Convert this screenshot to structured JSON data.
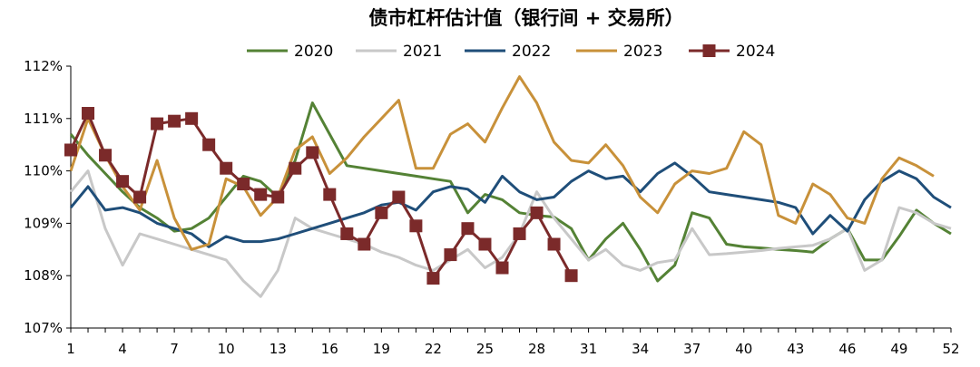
{
  "chart_data": {
    "type": "line",
    "title": "债市杠杆估计值（银行间 + 交易所）",
    "xlabel": "",
    "ylabel": "",
    "xlim": [
      1,
      52
    ],
    "ylim": [
      107,
      112
    ],
    "x_ticks": [
      "1",
      "4",
      "7",
      "10",
      "13",
      "16",
      "19",
      "22",
      "25",
      "28",
      "31",
      "34",
      "37",
      "40",
      "43",
      "46",
      "49",
      "52"
    ],
    "y_ticks": [
      "107%",
      "108%",
      "109%",
      "110%",
      "111%",
      "112%"
    ],
    "grid": false,
    "legend_position": "top",
    "series": [
      {
        "name": "2020",
        "color": "#548235",
        "marker": "none",
        "values": [
          110.7,
          110.3,
          109.95,
          109.6,
          109.3,
          109.1,
          108.85,
          108.9,
          109.1,
          109.5,
          109.9,
          109.8,
          109.5,
          110.2,
          111.3,
          110.7,
          110.1,
          110.05,
          110.0,
          109.95,
          109.9,
          109.85,
          109.8,
          109.2,
          109.55,
          109.45,
          109.2,
          109.15,
          109.12,
          108.9,
          108.3,
          108.7,
          109.0,
          108.5,
          107.9,
          108.2,
          109.2,
          109.1,
          108.6,
          108.55,
          108.53,
          108.5,
          108.48,
          108.45,
          108.7,
          108.9,
          108.3,
          108.3,
          108.75,
          109.25,
          109.0,
          108.8
        ]
      },
      {
        "name": "2021",
        "color": "#c8c8c8",
        "marker": "none",
        "values": [
          109.6,
          110.0,
          108.9,
          108.2,
          108.8,
          108.7,
          108.6,
          108.5,
          108.4,
          108.3,
          107.9,
          107.6,
          108.1,
          109.1,
          108.9,
          108.8,
          108.7,
          108.6,
          108.45,
          108.35,
          108.2,
          108.1,
          108.3,
          108.5,
          108.15,
          108.35,
          108.8,
          109.6,
          109.1,
          108.7,
          108.3,
          108.5,
          108.2,
          108.1,
          108.25,
          108.3,
          108.9,
          108.4,
          108.42,
          108.45,
          108.48,
          108.52,
          108.55,
          108.58,
          108.7,
          108.9,
          108.1,
          108.3,
          109.3,
          109.2,
          109.0,
          108.9
        ]
      },
      {
        "name": "2022",
        "color": "#1f4e79",
        "marker": "none",
        "values": [
          109.3,
          109.7,
          109.25,
          109.3,
          109.2,
          109.0,
          108.9,
          108.8,
          108.55,
          108.75,
          108.65,
          108.65,
          108.7,
          108.8,
          108.9,
          109.0,
          109.1,
          109.2,
          109.35,
          109.4,
          109.25,
          109.6,
          109.7,
          109.65,
          109.4,
          109.9,
          109.6,
          109.45,
          109.5,
          109.8,
          110.0,
          109.85,
          109.9,
          109.6,
          109.95,
          110.15,
          109.9,
          109.6,
          109.55,
          109.5,
          109.45,
          109.4,
          109.3,
          108.8,
          109.15,
          108.85,
          109.45,
          109.8,
          110.0,
          109.85,
          109.5,
          109.3
        ]
      },
      {
        "name": "2023",
        "color": "#c8913a",
        "marker": "none",
        "values": [
          110.0,
          111.0,
          110.3,
          109.7,
          109.25,
          110.2,
          109.1,
          108.5,
          108.6,
          109.85,
          109.7,
          109.15,
          109.5,
          110.4,
          110.65,
          109.95,
          110.25,
          110.65,
          111.0,
          111.35,
          110.05,
          110.05,
          110.7,
          110.9,
          110.55,
          111.2,
          111.8,
          111.3,
          110.55,
          110.2,
          110.15,
          110.5,
          110.1,
          109.5,
          109.2,
          109.75,
          110.0,
          109.95,
          110.05,
          110.75,
          110.5,
          109.15,
          109.0,
          109.75,
          109.55,
          109.1,
          109.0,
          109.85,
          110.25,
          110.1,
          109.9,
          null
        ]
      },
      {
        "name": "2024",
        "color": "#7b2a2a",
        "marker": "square",
        "values": [
          110.4,
          111.1,
          110.3,
          109.8,
          109.5,
          110.9,
          110.95,
          111.0,
          110.5,
          110.05,
          109.75,
          109.55,
          109.5,
          110.05,
          110.35,
          109.55,
          108.8,
          108.6,
          109.2,
          109.5,
          108.95,
          107.95,
          108.4,
          108.9,
          108.6,
          108.15,
          108.8,
          109.2,
          108.6,
          108.0,
          null,
          null,
          null,
          null,
          null,
          null,
          null,
          null,
          null,
          null,
          null,
          null,
          null,
          null,
          null,
          null,
          null,
          null,
          null,
          null,
          null,
          null
        ]
      }
    ]
  }
}
